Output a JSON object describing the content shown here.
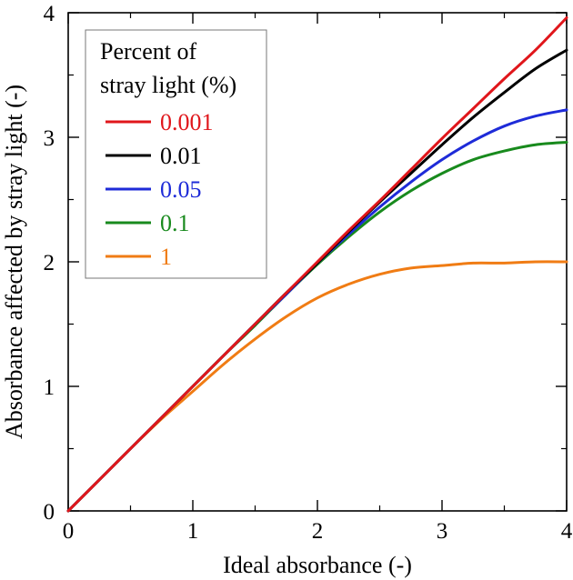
{
  "chart_data": {
    "type": "line",
    "title": "",
    "xlabel": "Ideal absorbance  (-)",
    "ylabel": "Absorbance affected by stray light  (-)",
    "xlim": [
      0,
      4
    ],
    "ylim": [
      0,
      4
    ],
    "xticks": [
      "0",
      "1",
      "2",
      "3",
      "4"
    ],
    "yticks": [
      "0",
      "1",
      "2",
      "3",
      "4"
    ],
    "grid": false,
    "legend": {
      "title_line1": "Percent of",
      "title_line2": "stray light (%)",
      "placement": "top-left"
    },
    "x": [
      0,
      0.25,
      0.5,
      0.75,
      1.0,
      1.25,
      1.5,
      1.75,
      2.0,
      2.25,
      2.5,
      2.75,
      3.0,
      3.25,
      3.5,
      3.75,
      4.0
    ],
    "series": [
      {
        "name": "0.001",
        "color": "#e0161b",
        "values": [
          0,
          0.25,
          0.5,
          0.75,
          1.0,
          1.25,
          1.5,
          1.75,
          2.0,
          2.25,
          2.49,
          2.74,
          2.99,
          3.23,
          3.47,
          3.7,
          3.96
        ]
      },
      {
        "name": "0.01",
        "color": "#000000",
        "values": [
          0,
          0.25,
          0.5,
          0.75,
          1.0,
          1.25,
          1.5,
          1.75,
          1.99,
          2.24,
          2.48,
          2.71,
          2.94,
          3.16,
          3.36,
          3.55,
          3.7
        ]
      },
      {
        "name": "0.05",
        "color": "#1e2bd8",
        "values": [
          0,
          0.25,
          0.5,
          0.75,
          1.0,
          1.25,
          1.5,
          1.74,
          1.99,
          2.22,
          2.44,
          2.64,
          2.82,
          2.97,
          3.09,
          3.17,
          3.22
        ]
      },
      {
        "name": "0.1",
        "color": "#188a1d",
        "values": [
          0,
          0.25,
          0.5,
          0.75,
          1.0,
          1.25,
          1.49,
          1.74,
          1.98,
          2.2,
          2.4,
          2.57,
          2.71,
          2.82,
          2.89,
          2.94,
          2.96
        ]
      },
      {
        "name": "1",
        "color": "#f07c14",
        "values": [
          0,
          0.25,
          0.5,
          0.74,
          0.96,
          1.18,
          1.38,
          1.56,
          1.71,
          1.82,
          1.9,
          1.95,
          1.97,
          1.99,
          1.99,
          2.0,
          2.0
        ]
      }
    ]
  }
}
